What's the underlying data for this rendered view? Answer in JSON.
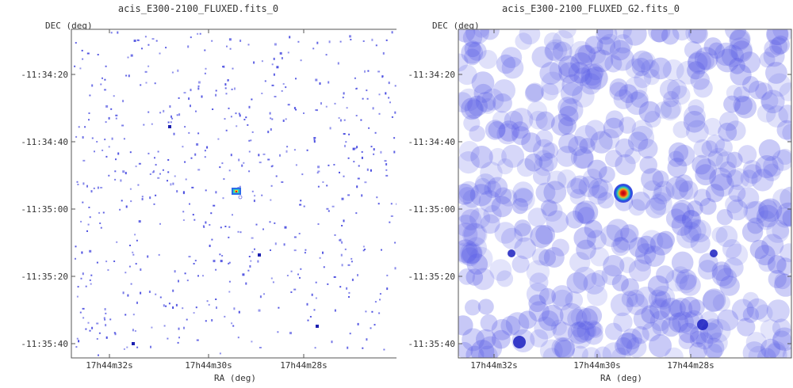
{
  "accent_color": "#4a4de0",
  "chart_data": [
    {
      "type": "heatmap",
      "title": "acis_E300-2100_FLUXED.fits_0",
      "xlabel": "RA (deg)",
      "ylabel": "DEC (deg)",
      "x_ticks": [
        "17h44m32s",
        "17h44m30s",
        "17h44m28s"
      ],
      "y_ticks": [
        "-11:34:20",
        "-11:34:40",
        "-11:35:00",
        "-11:35:20",
        "-11:35:40"
      ],
      "style": "sparse",
      "source": {
        "ra": "17h44m29.6s",
        "dec": "-11:34:55"
      },
      "grid": false
    },
    {
      "type": "heatmap",
      "title": "acis_E300-2100_FLUXED_G2.fits_0",
      "xlabel": "RA (deg)",
      "ylabel": "DEC (deg)",
      "x_ticks": [
        "17h44m32s",
        "17h44m30s",
        "17h44m28s"
      ],
      "y_ticks": [
        "-11:34:20",
        "-11:34:40",
        "-11:35:00",
        "-11:35:20",
        "-11:35:40"
      ],
      "style": "smoothed",
      "source": {
        "ra": "17h44m29.6s",
        "dec": "-11:34:55"
      },
      "grid": false
    }
  ]
}
